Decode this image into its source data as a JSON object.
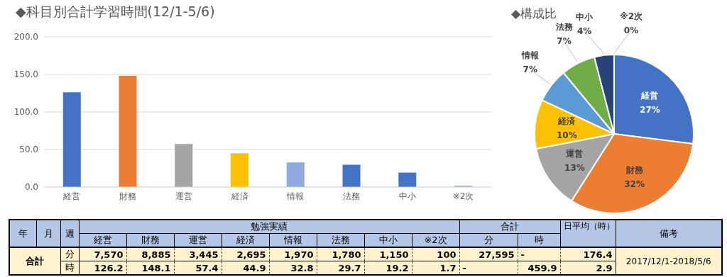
{
  "chart_data": [
    {
      "type": "bar",
      "title": "◆科目別合計学習時間(12/1-5/6)",
      "categories": [
        "経営",
        "財務",
        "運営",
        "経済",
        "情報",
        "法務",
        "中小",
        "※2次"
      ],
      "values": [
        126.2,
        148.1,
        57.4,
        44.9,
        32.8,
        29.7,
        19.2,
        1.7
      ],
      "colors": [
        "#4472c4",
        "#ed7d31",
        "#a5a5a5",
        "#ffc000",
        "#8faadc",
        "#4472c4",
        "#4472c4",
        "#8faadc"
      ],
      "ylim": [
        0,
        200
      ],
      "yticks": [
        {
          "value": 0,
          "label": "0.0"
        },
        {
          "value": 50,
          "label": "50.0"
        },
        {
          "value": 100,
          "label": "100.0"
        },
        {
          "value": 150,
          "label": "150.0"
        },
        {
          "value": 200,
          "label": "200.0"
        }
      ],
      "grid": "y",
      "legend": false
    },
    {
      "type": "pie",
      "title": "◆構成比",
      "categories": [
        "経営",
        "財務",
        "運営",
        "経済",
        "情報",
        "法務",
        "中小",
        "※2次"
      ],
      "values": [
        27,
        32,
        13,
        10,
        7,
        7,
        4,
        0
      ],
      "value_labels": [
        "27%",
        "32%",
        "13%",
        "10%",
        "7%",
        "7%",
        "4%",
        "0%"
      ],
      "colors": [
        "#4472c4",
        "#ed7d31",
        "#a5a5a5",
        "#ffc000",
        "#5b9bd5",
        "#70ad47",
        "#264478",
        "#636363"
      ],
      "data_labels": true,
      "legend": false
    },
    {
      "type": "other",
      "annotations": [
        "年",
        "月",
        "週",
        "勉強実績",
        "合計",
        "日平均（時）",
        "備考",
        "経営",
        "財務",
        "運営",
        "経済",
        "情報",
        "法務",
        "中小",
        "※2次",
        "分",
        "時",
        "合計",
        "分",
        "7,570",
        "8,885",
        "3,445",
        "2,695",
        "1,970",
        "1,780",
        "1,150",
        "100",
        "27,595",
        "-",
        "176.4",
        "2017/12/1-2018/5/6",
        "時",
        "126.2",
        "148.1",
        "57.4",
        "44.9",
        "32.8",
        "29.7",
        "19.2",
        "1.7",
        "-",
        "459.9",
        "2.9"
      ]
    }
  ]
}
